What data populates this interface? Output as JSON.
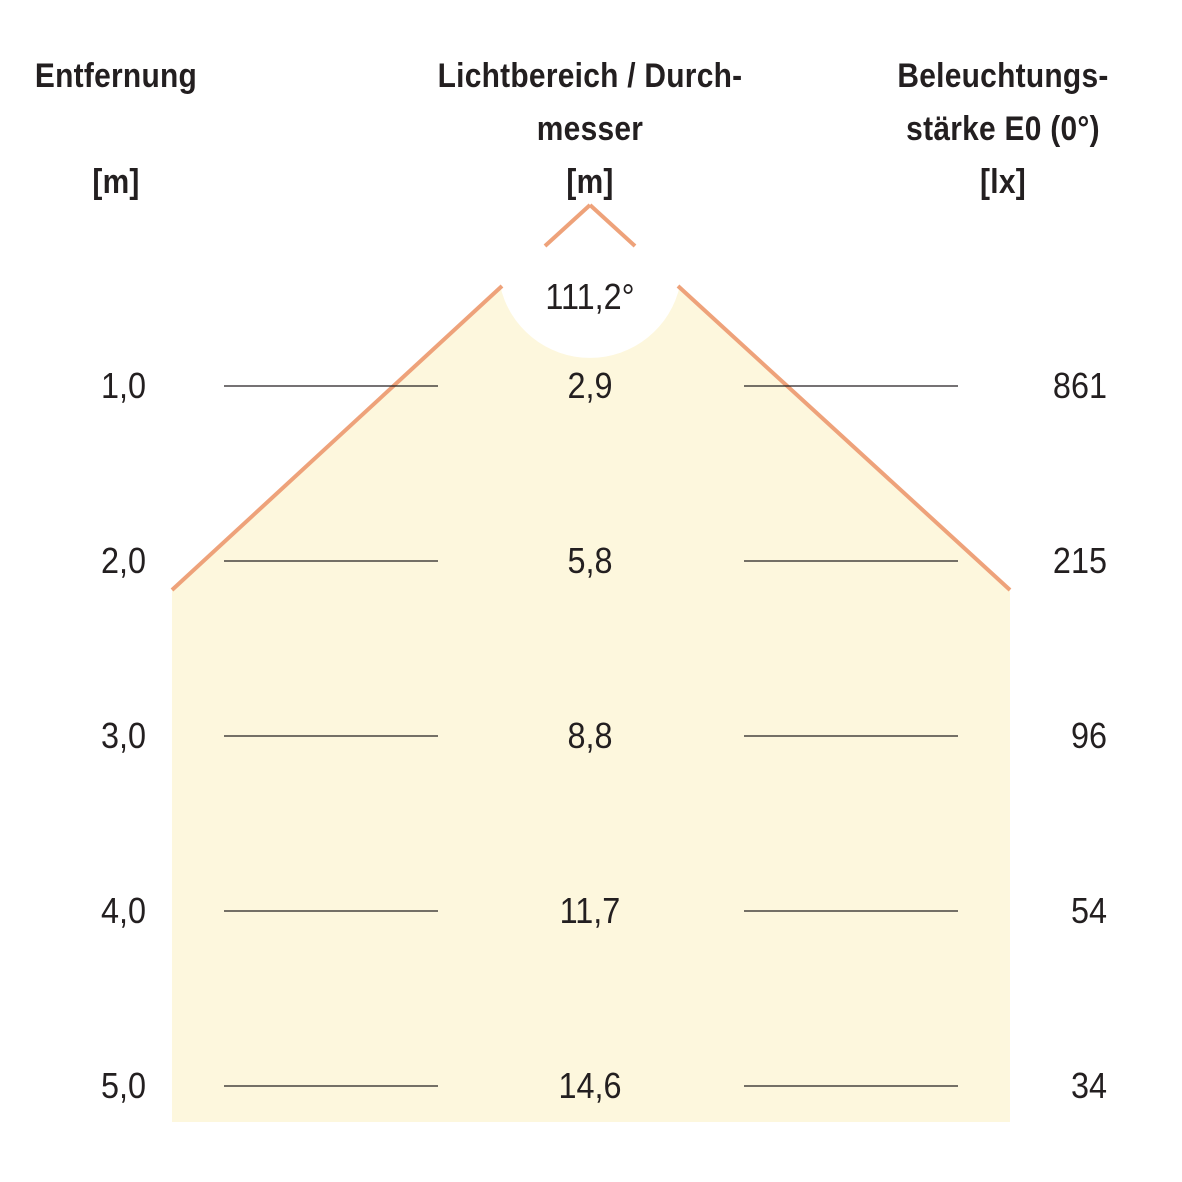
{
  "headers": {
    "distance": [
      "Entfernung",
      "",
      "[m]"
    ],
    "diameter": [
      "Lichtbereich / Durch-",
      "messer",
      "[m]"
    ],
    "illuminance": [
      "Beleuchtungs-",
      "stärke E0 (0°)",
      "[lx]"
    ]
  },
  "beam_angle": "111,2°",
  "rows": [
    {
      "distance": "1,0",
      "diameter": "2,9",
      "lux": "861"
    },
    {
      "distance": "2,0",
      "diameter": "5,8",
      "lux": "215"
    },
    {
      "distance": "3,0",
      "diameter": "8,8",
      "lux": "96"
    },
    {
      "distance": "4,0",
      "diameter": "11,7",
      "lux": "54"
    },
    {
      "distance": "5,0",
      "diameter": "14,6",
      "lux": "34"
    }
  ],
  "colors": {
    "beam_fill": "#fdf7dd",
    "beam_edge": "#eea27a",
    "rule_line": "#231f20"
  }
}
